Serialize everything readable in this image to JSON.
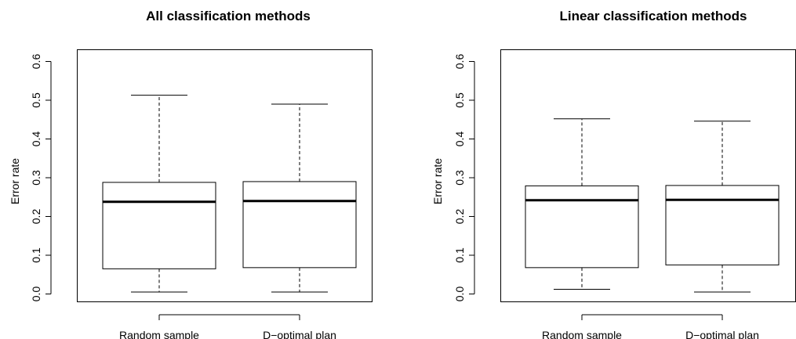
{
  "chart_data": [
    {
      "type": "boxplot",
      "title": "All classification methods",
      "xlabel": "",
      "ylabel": "Error rate",
      "ylim": [
        0.0,
        0.6
      ],
      "yticks": [
        "0.0",
        "0.1",
        "0.2",
        "0.3",
        "0.4",
        "0.5",
        "0.6"
      ],
      "categories": [
        "Random sample",
        "D−optimal plan"
      ],
      "boxes": [
        {
          "min": 0.005,
          "q1": 0.065,
          "median": 0.238,
          "q3": 0.288,
          "max": 0.513
        },
        {
          "min": 0.005,
          "q1": 0.068,
          "median": 0.24,
          "q3": 0.29,
          "max": 0.49
        }
      ]
    },
    {
      "type": "boxplot",
      "title": "Linear classification methods",
      "xlabel": "",
      "ylabel": "Error rate",
      "ylim": [
        0.0,
        0.6
      ],
      "yticks": [
        "0.0",
        "0.1",
        "0.2",
        "0.3",
        "0.4",
        "0.5",
        "0.6"
      ],
      "categories": [
        "Random sample",
        "D−optimal plan"
      ],
      "boxes": [
        {
          "min": 0.012,
          "q1": 0.068,
          "median": 0.242,
          "q3": 0.279,
          "max": 0.452
        },
        {
          "min": 0.005,
          "q1": 0.075,
          "median": 0.243,
          "q3": 0.28,
          "max": 0.446
        }
      ]
    }
  ]
}
